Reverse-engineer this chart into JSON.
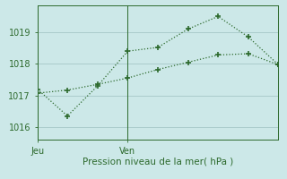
{
  "line1_x": [
    0,
    1,
    2,
    3,
    4,
    5,
    6,
    7,
    8
  ],
  "line1_y": [
    1017.2,
    1016.35,
    1017.3,
    1018.4,
    1018.52,
    1019.1,
    1019.5,
    1018.85,
    1017.97
  ],
  "line2_x": [
    0,
    1,
    2,
    3,
    4,
    5,
    6,
    7,
    8
  ],
  "line2_y": [
    1017.07,
    1017.17,
    1017.35,
    1017.55,
    1017.82,
    1018.05,
    1018.28,
    1018.32,
    1017.97
  ],
  "line_color": "#2d6a2d",
  "bg_color": "#cce8e8",
  "grid_color": "#aacccc",
  "xlabel": "Pression niveau de la mer( hPa )",
  "day_positions": [
    0,
    3
  ],
  "day_labels": [
    "Jeu",
    "Ven"
  ],
  "ylim": [
    1015.6,
    1019.85
  ],
  "yticks": [
    1016,
    1017,
    1018,
    1019
  ],
  "xlim": [
    0,
    8
  ],
  "fontsize_label": 7.5,
  "fontsize_tick": 7
}
